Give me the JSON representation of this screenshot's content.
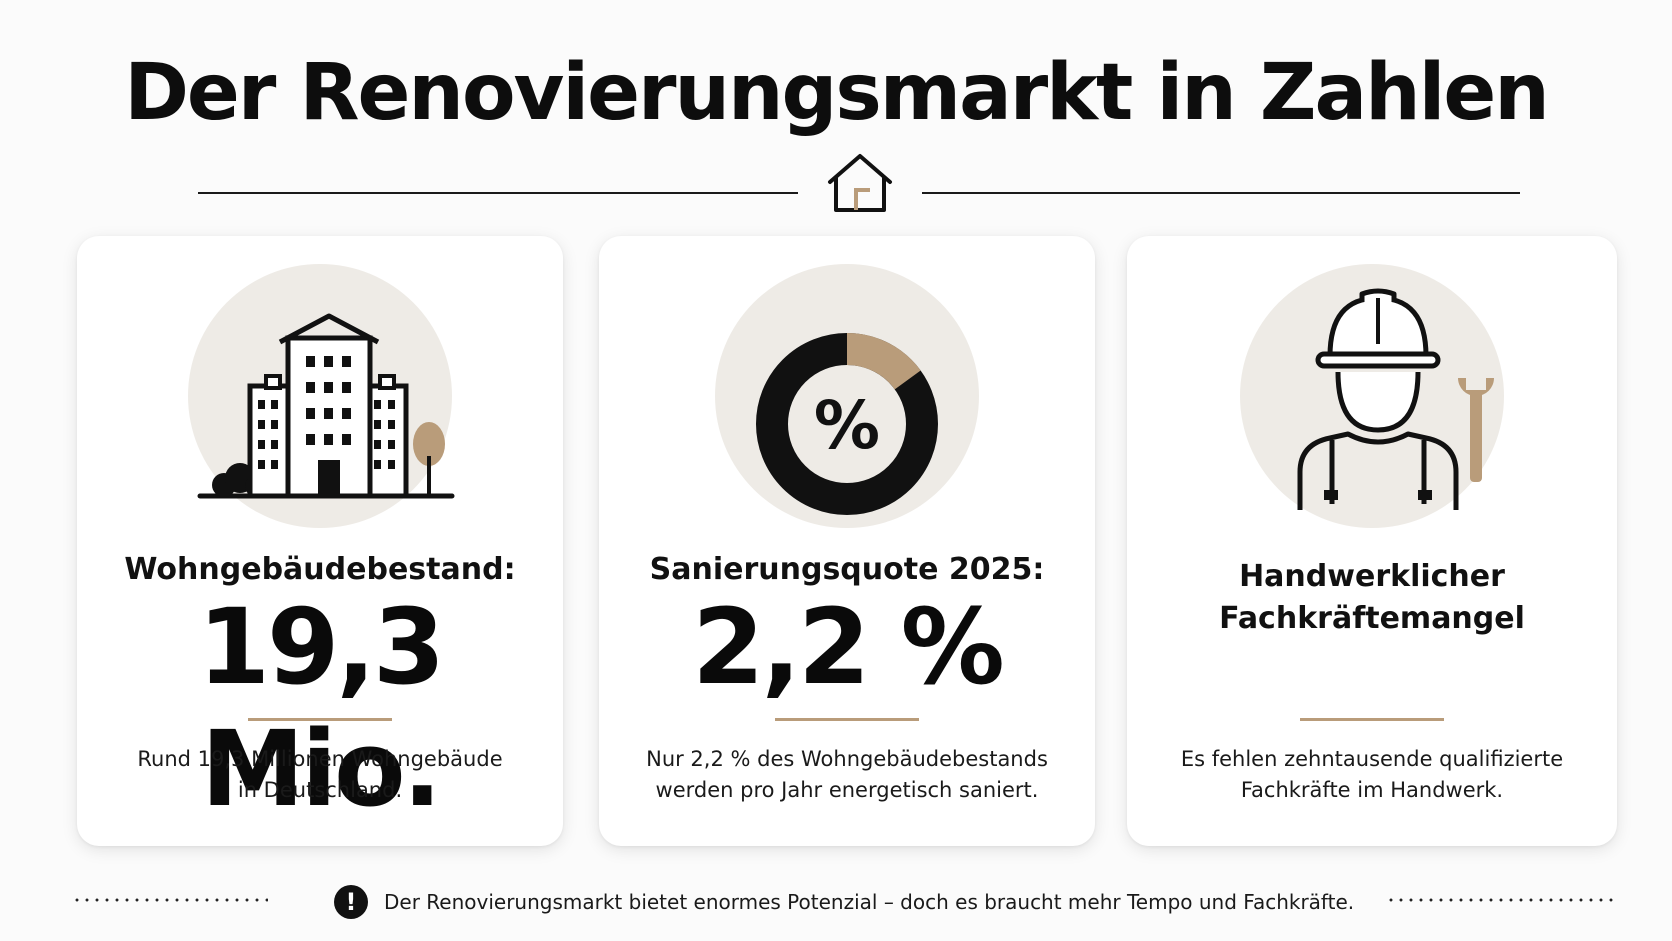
{
  "title": "Der Renovierungsmarkt in Zahlen",
  "colors": {
    "accent": "#b99c7a",
    "dark": "#111111",
    "circle_bg": "#eeebe6"
  },
  "cards": [
    {
      "icon": "apartment-building-icon",
      "label": "Wohngebäudebestand:",
      "value": "19,3 Mio.",
      "description_line1": "Rund 19,3 Millionen Wohngebäude",
      "description_line2": "in Deutschland."
    },
    {
      "icon": "percent-donut-icon",
      "icon_symbol": "%",
      "donut_accent_fraction": 0.15,
      "label": "Sanierungsquote 2025:",
      "value": "2,2 %",
      "description_line1": "Nur 2,2 % des Wohngebäudebestands",
      "description_line2": "werden pro Jahr energetisch saniert."
    },
    {
      "icon": "construction-worker-icon",
      "label_line1": "Handwerklicher",
      "label_line2": "Fachkräftemangel",
      "description_line1": "Es fehlen zehntausende qualifizierte",
      "description_line2": "Fachkräfte im Handwerk."
    }
  ],
  "footer": {
    "icon": "exclamation-icon",
    "icon_symbol": "!",
    "text": "Der Renovierungsmarkt bietet enormes Potenzial – doch es braucht mehr Tempo und Fachkräfte."
  }
}
